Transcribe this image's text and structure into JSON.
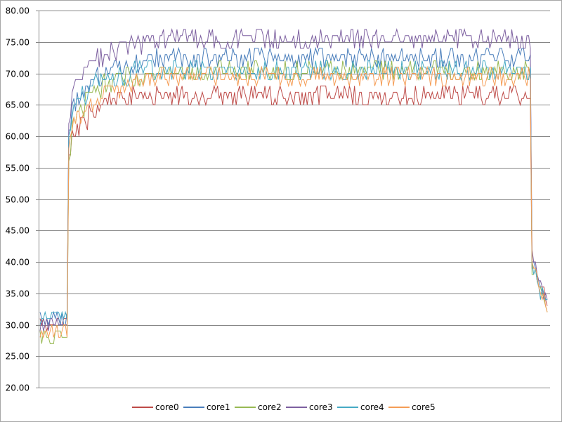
{
  "chart_data": {
    "type": "line",
    "title": "",
    "xlabel": "",
    "ylabel": "",
    "ylim": [
      20,
      80
    ],
    "yticks": [
      "20.00",
      "25.00",
      "30.00",
      "35.00",
      "40.00",
      "45.00",
      "50.00",
      "55.00",
      "60.00",
      "65.00",
      "70.00",
      "75.00",
      "80.00"
    ],
    "grid": true,
    "legend_position": "bottom",
    "x_count": 300,
    "series": [
      {
        "name": "core0",
        "color": "#be4b48",
        "segments": [
          [
            0,
            30
          ],
          [
            16,
            30
          ],
          [
            17,
            57
          ],
          [
            20,
            60
          ],
          [
            30,
            63
          ],
          [
            40,
            65
          ],
          [
            70,
            66
          ],
          [
            170,
            66
          ],
          [
            290,
            66
          ],
          [
            291,
            40
          ],
          [
            295,
            37
          ],
          [
            300,
            33
          ]
        ]
      },
      {
        "name": "core1",
        "color": "#4a7ebb",
        "segments": [
          [
            0,
            31
          ],
          [
            16,
            31
          ],
          [
            17,
            60
          ],
          [
            20,
            65
          ],
          [
            30,
            68
          ],
          [
            40,
            70
          ],
          [
            70,
            72
          ],
          [
            170,
            72
          ],
          [
            290,
            72
          ],
          [
            291,
            40
          ],
          [
            295,
            37
          ],
          [
            300,
            33
          ]
        ]
      },
      {
        "name": "core2",
        "color": "#98b954",
        "segments": [
          [
            0,
            28
          ],
          [
            16,
            28
          ],
          [
            17,
            56
          ],
          [
            20,
            62
          ],
          [
            30,
            66
          ],
          [
            40,
            68
          ],
          [
            70,
            70
          ],
          [
            170,
            70
          ],
          [
            290,
            70
          ],
          [
            291,
            39
          ],
          [
            295,
            36
          ],
          [
            300,
            32
          ]
        ]
      },
      {
        "name": "core3",
        "color": "#7d60a0",
        "segments": [
          [
            0,
            30
          ],
          [
            16,
            30
          ],
          [
            17,
            62
          ],
          [
            20,
            67
          ],
          [
            30,
            71
          ],
          [
            40,
            73
          ],
          [
            70,
            75
          ],
          [
            170,
            75
          ],
          [
            290,
            75
          ],
          [
            291,
            41
          ],
          [
            295,
            37
          ],
          [
            300,
            34
          ]
        ]
      },
      {
        "name": "core4",
        "color": "#46aac5",
        "segments": [
          [
            0,
            31
          ],
          [
            16,
            31
          ],
          [
            17,
            61
          ],
          [
            20,
            64
          ],
          [
            30,
            67
          ],
          [
            40,
            69
          ],
          [
            70,
            70
          ],
          [
            170,
            70
          ],
          [
            290,
            70
          ],
          [
            291,
            40
          ],
          [
            295,
            36
          ],
          [
            300,
            33
          ]
        ]
      },
      {
        "name": "core5",
        "color": "#f59d56",
        "segments": [
          [
            0,
            29
          ],
          [
            16,
            29
          ],
          [
            17,
            58
          ],
          [
            20,
            62
          ],
          [
            30,
            65
          ],
          [
            40,
            67
          ],
          [
            70,
            69
          ],
          [
            170,
            69
          ],
          [
            290,
            69
          ],
          [
            291,
            39
          ],
          [
            295,
            36
          ],
          [
            300,
            32
          ]
        ]
      }
    ]
  }
}
